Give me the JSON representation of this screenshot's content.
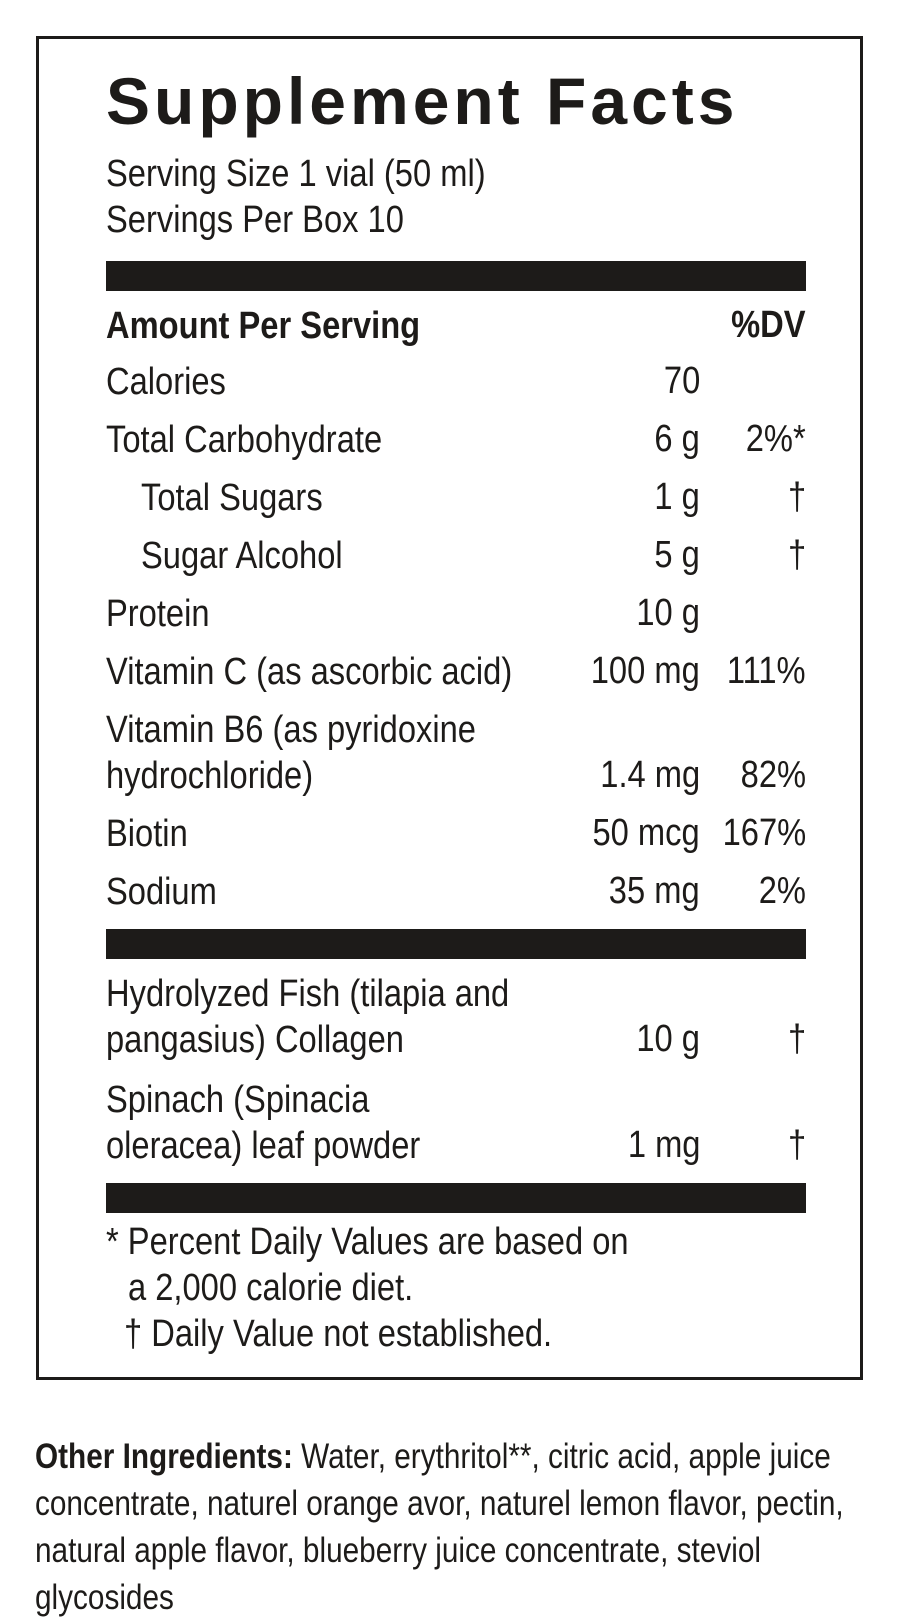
{
  "label": {
    "title": "Supplement Facts",
    "serving_size": "Serving Size 1 vial (50 ml)",
    "servings_per_box": "Servings Per Box 10",
    "header": {
      "amount_per_serving": "Amount Per Serving",
      "dv": "%DV"
    },
    "rows": [
      {
        "name": "Calories",
        "amount": "70",
        "dv": ""
      },
      {
        "name": "Total Carbohydrate",
        "amount": "6 g",
        "dv": "2%*"
      },
      {
        "name": "Total Sugars",
        "amount": "1 g",
        "dv": "†"
      },
      {
        "name": "Sugar Alcohol",
        "amount": "5 g",
        "dv": "†"
      },
      {
        "name": "Protein",
        "amount": "10 g",
        "dv": ""
      },
      {
        "name": "Vitamin C (as ascorbic acid)",
        "amount": "100 mg",
        "dv": "111%"
      },
      {
        "line1": "Vitamin B6 (as pyridoxine",
        "line2": "hydrochloride)",
        "amount": "1.4 mg",
        "dv": "82%"
      },
      {
        "name": "Biotin",
        "amount": "50 mcg",
        "dv": "167%"
      },
      {
        "name": "Sodium",
        "amount": "35 mg",
        "dv": "2%"
      }
    ],
    "rows2": [
      {
        "line1": "Hydrolyzed Fish (tilapia and",
        "line2": "pangasius) Collagen",
        "amount": "10 g",
        "dv": "†"
      },
      {
        "line1": "Spinach (Spinacia",
        "line2": "oleracea) leaf powder",
        "amount": "1 mg",
        "dv": "†"
      }
    ],
    "footnotes": {
      "dv_line1": "* Percent Daily Values are based on",
      "dv_line2": "a 2,000 calorie diet.",
      "not_established": "† Daily Value not established."
    }
  },
  "other_ingredients": {
    "label": "Other Ingredients:",
    "text": " Water, erythritol**, citric acid, apple juice concentrate, naturel orange avor, naturel lemon flavor, pectin, natural apple flavor, blueberry juice concentrate, steviol glycosides"
  },
  "colors": {
    "ink": "#1d1b19",
    "background": "#ffffff"
  }
}
